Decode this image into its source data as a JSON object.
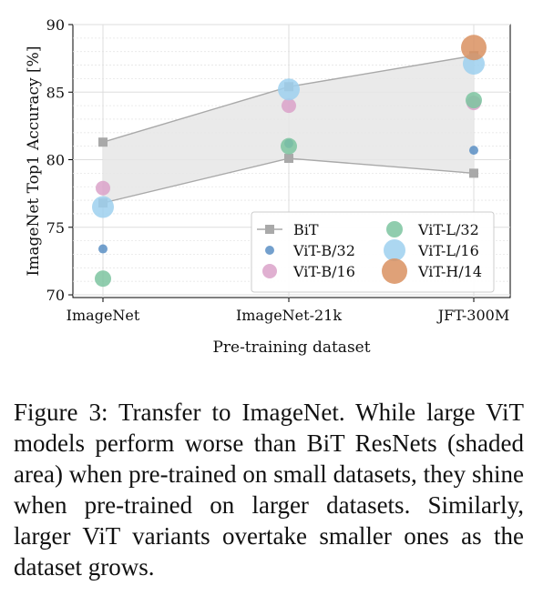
{
  "chart_data": {
    "type": "scatter",
    "title": "",
    "xlabel": "Pre-training dataset",
    "ylabel": "ImageNet Top1 Accuracy [%]",
    "categories": [
      "ImageNet",
      "ImageNet-21k",
      "JFT-300M"
    ],
    "ylim": [
      69.8,
      90
    ],
    "yticks": [
      70,
      75,
      80,
      85,
      90
    ],
    "grid": true,
    "legend_position": "lower-right",
    "bit": {
      "name": "BiT",
      "upper": [
        81.3,
        85.4,
        87.7
      ],
      "lower": [
        76.8,
        80.1,
        79.0
      ],
      "color": "#a9a9a9",
      "fill": "#e6e6e6"
    },
    "series": [
      {
        "name": "ViT-B/32",
        "values": [
          73.4,
          81.2,
          80.7
        ],
        "color": "#5b8fc4",
        "size": 5
      },
      {
        "name": "ViT-B/16",
        "values": [
          77.9,
          84.0,
          84.2
        ],
        "color": "#dba2c9",
        "size": 8
      },
      {
        "name": "ViT-L/32",
        "values": [
          71.2,
          81.0,
          84.4
        ],
        "color": "#7cc4a0",
        "size": 9
      },
      {
        "name": "ViT-L/16",
        "values": [
          76.5,
          85.2,
          87.1
        ],
        "color": "#9dd0ee",
        "size": 12
      },
      {
        "name": "ViT-H/14",
        "values": [
          null,
          null,
          88.3
        ],
        "color": "#d99060",
        "size": 14
      }
    ]
  },
  "caption": "Figure 3:  Transfer to ImageNet.  While large ViT models perform worse than BiT ResNets (shaded area) when pre-trained on small datasets, they shine when pre-trained on larger datasets. Similarly, larger ViT variants overtake smaller ones as the dataset grows."
}
